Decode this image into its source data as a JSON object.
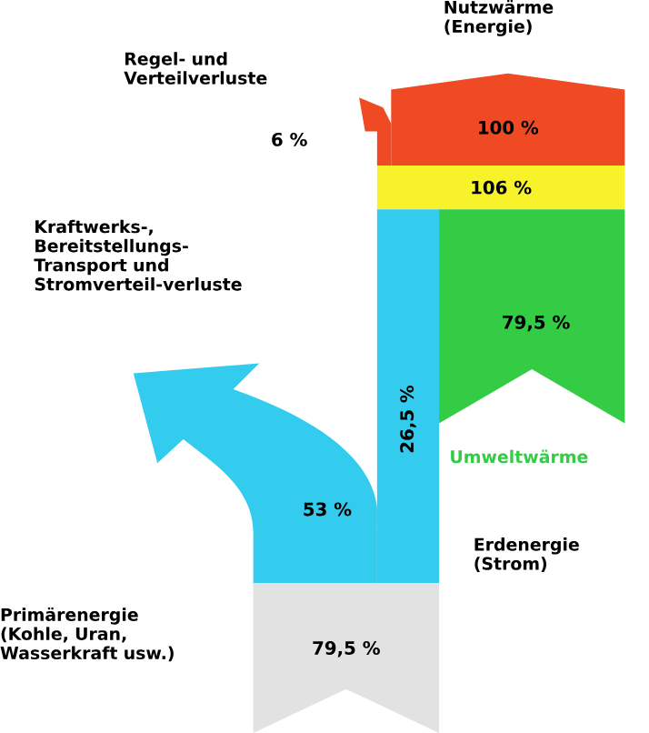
{
  "chart_data": {
    "type": "other",
    "categories": [
      null,
      null,
      null,
      null,
      null,
      null,
      null
    ],
    "values": [
      100,
      6,
      106,
      79.5,
      26.5,
      53,
      79.5
    ],
    "value_labels": [
      "100 %",
      "6 %",
      "106 %",
      "79,5 %",
      "26,5 %",
      "53 %",
      "79,5 %"
    ],
    "colors": [
      "#f04a24",
      "#f04a24",
      "#f8f22a",
      "#33cc44",
      "#33ccee",
      "#33ccee",
      "#e2e2e2"
    ],
    "annotations": [
      "Nutzwärme (Energie)",
      "Regel- und Verteilverluste",
      "Umweltwärme",
      "Erdenergie (Strom)",
      "Kraftwerks-, Bereitstellungs-Transport und Stromverteil-verluste",
      "Primärenergie (Kohle, Uran, Wasserkraft usw.)"
    ]
  }
}
